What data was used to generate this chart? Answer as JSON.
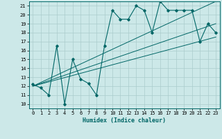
{
  "xlabel": "Humidex (Indice chaleur)",
  "bg_color": "#cce8e8",
  "grid_color": "#aacccc",
  "line_color": "#006666",
  "xlim": [
    -0.5,
    23.5
  ],
  "ylim": [
    9.5,
    21.5
  ],
  "xticks": [
    0,
    1,
    2,
    3,
    4,
    5,
    6,
    7,
    8,
    9,
    10,
    11,
    12,
    13,
    14,
    15,
    16,
    17,
    18,
    19,
    20,
    21,
    22,
    23
  ],
  "yticks": [
    10,
    11,
    12,
    13,
    14,
    15,
    16,
    17,
    18,
    19,
    20,
    21
  ],
  "series": [
    [
      0,
      12.2
    ],
    [
      1,
      11.8
    ],
    [
      2,
      11.0
    ],
    [
      3,
      16.5
    ],
    [
      4,
      10.0
    ],
    [
      5,
      15.0
    ],
    [
      6,
      12.8
    ],
    [
      7,
      12.3
    ],
    [
      8,
      11.0
    ],
    [
      9,
      16.5
    ],
    [
      10,
      20.5
    ],
    [
      11,
      19.5
    ],
    [
      12,
      19.5
    ],
    [
      13,
      21.0
    ],
    [
      14,
      20.5
    ],
    [
      15,
      18.0
    ],
    [
      16,
      21.5
    ],
    [
      17,
      20.5
    ],
    [
      18,
      20.5
    ],
    [
      19,
      20.5
    ],
    [
      20,
      20.5
    ],
    [
      21,
      17.0
    ],
    [
      22,
      19.0
    ],
    [
      23,
      18.0
    ]
  ],
  "trend_lines": [
    {
      "x": [
        0,
        23
      ],
      "y": [
        12.0,
        17.5
      ]
    },
    {
      "x": [
        0,
        23
      ],
      "y": [
        12.0,
        19.0
      ]
    },
    {
      "x": [
        0,
        23
      ],
      "y": [
        12.0,
        21.5
      ]
    }
  ]
}
